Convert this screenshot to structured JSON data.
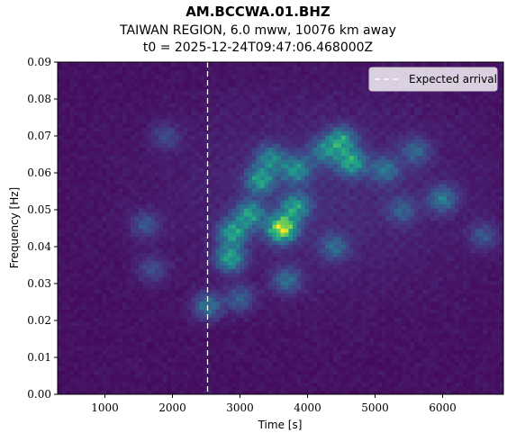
{
  "title": {
    "line1": "AM.BCCWA.01.BHZ",
    "line2": "TAIWAN REGION, 6.0 mww, 10076 km away",
    "line3": "t0 = 2025-12-24T09:47:06.468000Z"
  },
  "chart_data": {
    "type": "heatmap",
    "xlabel": "Time [s]",
    "ylabel": "Frequency [Hz]",
    "xlim": [
      300,
      6900
    ],
    "ylim": [
      0.0,
      0.09
    ],
    "x_ticks": [
      1000,
      2000,
      3000,
      4000,
      5000,
      6000
    ],
    "x_tick_labels": [
      "1000",
      "2000",
      "3000",
      "4000",
      "5000",
      "6000"
    ],
    "y_ticks": [
      0.0,
      0.01,
      0.02,
      0.03,
      0.04,
      0.05,
      0.06,
      0.07,
      0.08,
      0.09
    ],
    "y_tick_labels": [
      "0.00",
      "0.01",
      "0.02",
      "0.03",
      "0.04",
      "0.05",
      "0.06",
      "0.07",
      "0.08",
      "0.09"
    ],
    "colormap": "viridis",
    "expected_arrival": 2520,
    "legend": {
      "entries": [
        "Expected arrival"
      ],
      "location": "top-right"
    },
    "energy_blobs": [
      {
        "t": 2520,
        "f": 0.024,
        "amp": 0.4
      },
      {
        "t": 2850,
        "f": 0.037,
        "amp": 0.6
      },
      {
        "t": 2900,
        "f": 0.044,
        "amp": 0.6
      },
      {
        "t": 3150,
        "f": 0.049,
        "amp": 0.55
      },
      {
        "t": 3300,
        "f": 0.058,
        "amp": 0.55
      },
      {
        "t": 3450,
        "f": 0.064,
        "amp": 0.45
      },
      {
        "t": 3620,
        "f": 0.045,
        "amp": 1.0
      },
      {
        "t": 3820,
        "f": 0.051,
        "amp": 0.55
      },
      {
        "t": 3830,
        "f": 0.061,
        "amp": 0.5
      },
      {
        "t": 3700,
        "f": 0.031,
        "amp": 0.35
      },
      {
        "t": 4250,
        "f": 0.066,
        "amp": 0.4
      },
      {
        "t": 4500,
        "f": 0.069,
        "amp": 0.55
      },
      {
        "t": 4650,
        "f": 0.063,
        "amp": 0.6
      },
      {
        "t": 4400,
        "f": 0.04,
        "amp": 0.3
      },
      {
        "t": 5150,
        "f": 0.061,
        "amp": 0.35
      },
      {
        "t": 5600,
        "f": 0.066,
        "amp": 0.3
      },
      {
        "t": 6000,
        "f": 0.053,
        "amp": 0.4
      },
      {
        "t": 5400,
        "f": 0.05,
        "amp": 0.25
      },
      {
        "t": 1600,
        "f": 0.046,
        "amp": 0.25
      },
      {
        "t": 1700,
        "f": 0.034,
        "amp": 0.22
      },
      {
        "t": 1900,
        "f": 0.07,
        "amp": 0.2
      },
      {
        "t": 6600,
        "f": 0.043,
        "amp": 0.25
      },
      {
        "t": 3000,
        "f": 0.026,
        "amp": 0.3
      }
    ]
  }
}
